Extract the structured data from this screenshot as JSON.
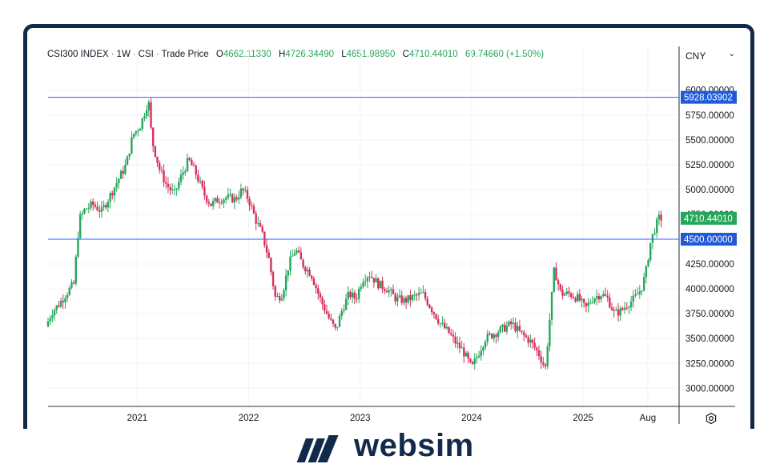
{
  "header": {
    "symbol": "CSI300 INDEX",
    "interval": "1W",
    "exchange": "CSI",
    "price_type": "Trade Price",
    "open_label": "O",
    "open": "4662.11330",
    "high_label": "H",
    "high": "4726.34490",
    "low_label": "L",
    "low": "4651.98950",
    "close_label": "C",
    "close": "4710.44010",
    "change": "69.74660 (+1.50%)"
  },
  "currency": {
    "label": "CNY",
    "chevron": "chevron-down-icon"
  },
  "logo": {
    "text": "websim",
    "icon": "websim-logo-icon",
    "color": "#13294b"
  },
  "colors": {
    "up": "#26a65b",
    "down": "#d6305a",
    "line": "#2962ff",
    "label_bg": "#1f5bd8",
    "last_bg": "#26a65b",
    "frame": "#13294b"
  },
  "chart_data": {
    "type": "candlestick",
    "y_ticks": [
      "6000.00000",
      "5750.00000",
      "5500.00000",
      "5250.00000",
      "5000.00000",
      "4750.00000",
      "4500.00000",
      "4250.00000",
      "4000.00000",
      "3750.00000",
      "3500.00000",
      "3250.00000",
      "3000.00000"
    ],
    "y_tick_values": [
      6000,
      5750,
      5500,
      5250,
      5000,
      4750,
      4500,
      4250,
      4000,
      3750,
      3500,
      3250,
      3000
    ],
    "ylim": [
      2800,
      6120
    ],
    "x_ticks": [
      "2021",
      "2022",
      "2023",
      "2024",
      "2025",
      "Aug"
    ],
    "x_tick_values": [
      2021.0,
      2022.0,
      2023.0,
      2024.0,
      2025.0,
      2025.58
    ],
    "xlim": [
      2020.2,
      2026.0
    ],
    "horizontal_lines": [
      {
        "value": 5928.03902,
        "label": "5928.03902"
      },
      {
        "value": 4500.0,
        "label": "4500.00000"
      }
    ],
    "last_price": {
      "value": 4710.4401,
      "label": "4710.44010"
    },
    "series_path": [
      [
        2020.2,
        3620
      ],
      [
        2020.25,
        3760
      ],
      [
        2020.32,
        3850
      ],
      [
        2020.38,
        3950
      ],
      [
        2020.45,
        4050
      ],
      [
        2020.5,
        4700
      ],
      [
        2020.55,
        4800
      ],
      [
        2020.62,
        4850
      ],
      [
        2020.7,
        4780
      ],
      [
        2020.78,
        4950
      ],
      [
        2020.85,
        5100
      ],
      [
        2020.92,
        5250
      ],
      [
        2020.98,
        5550
      ],
      [
        2021.05,
        5650
      ],
      [
        2021.12,
        5900
      ],
      [
        2021.15,
        5500
      ],
      [
        2021.22,
        5200
      ],
      [
        2021.28,
        5050
      ],
      [
        2021.35,
        4950
      ],
      [
        2021.42,
        5150
      ],
      [
        2021.48,
        5300
      ],
      [
        2021.55,
        5150
      ],
      [
        2021.62,
        4950
      ],
      [
        2021.68,
        4850
      ],
      [
        2021.75,
        4900
      ],
      [
        2021.82,
        4920
      ],
      [
        2021.9,
        4900
      ],
      [
        2021.96,
        5000
      ],
      [
        2022.02,
        4900
      ],
      [
        2022.08,
        4700
      ],
      [
        2022.14,
        4550
      ],
      [
        2022.2,
        4300
      ],
      [
        2022.26,
        3900
      ],
      [
        2022.32,
        3950
      ],
      [
        2022.38,
        4250
      ],
      [
        2022.44,
        4400
      ],
      [
        2022.5,
        4250
      ],
      [
        2022.58,
        4150
      ],
      [
        2022.66,
        3900
      ],
      [
        2022.74,
        3700
      ],
      [
        2022.8,
        3580
      ],
      [
        2022.86,
        3800
      ],
      [
        2022.92,
        3950
      ],
      [
        2022.98,
        3900
      ],
      [
        2023.04,
        4100
      ],
      [
        2023.1,
        4150
      ],
      [
        2023.18,
        4050
      ],
      [
        2023.26,
        4000
      ],
      [
        2023.34,
        3900
      ],
      [
        2023.42,
        3880
      ],
      [
        2023.5,
        3920
      ],
      [
        2023.58,
        3950
      ],
      [
        2023.66,
        3800
      ],
      [
        2023.74,
        3650
      ],
      [
        2023.82,
        3550
      ],
      [
        2023.88,
        3450
      ],
      [
        2023.94,
        3380
      ],
      [
        2024.02,
        3200
      ],
      [
        2024.08,
        3350
      ],
      [
        2024.14,
        3500
      ],
      [
        2024.22,
        3550
      ],
      [
        2024.3,
        3600
      ],
      [
        2024.38,
        3650
      ],
      [
        2024.46,
        3550
      ],
      [
        2024.54,
        3480
      ],
      [
        2024.62,
        3350
      ],
      [
        2024.68,
        3200
      ],
      [
        2024.72,
        3700
      ],
      [
        2024.76,
        4200
      ],
      [
        2024.82,
        3950
      ],
      [
        2024.9,
        3950
      ],
      [
        2024.98,
        3900
      ],
      [
        2025.04,
        3800
      ],
      [
        2025.1,
        3900
      ],
      [
        2025.18,
        3950
      ],
      [
        2025.24,
        3900
      ],
      [
        2025.3,
        3750
      ],
      [
        2025.36,
        3780
      ],
      [
        2025.42,
        3850
      ],
      [
        2025.48,
        3900
      ],
      [
        2025.54,
        4000
      ],
      [
        2025.58,
        4150
      ],
      [
        2025.62,
        4450
      ],
      [
        2025.66,
        4600
      ],
      [
        2025.7,
        4710
      ]
    ]
  }
}
